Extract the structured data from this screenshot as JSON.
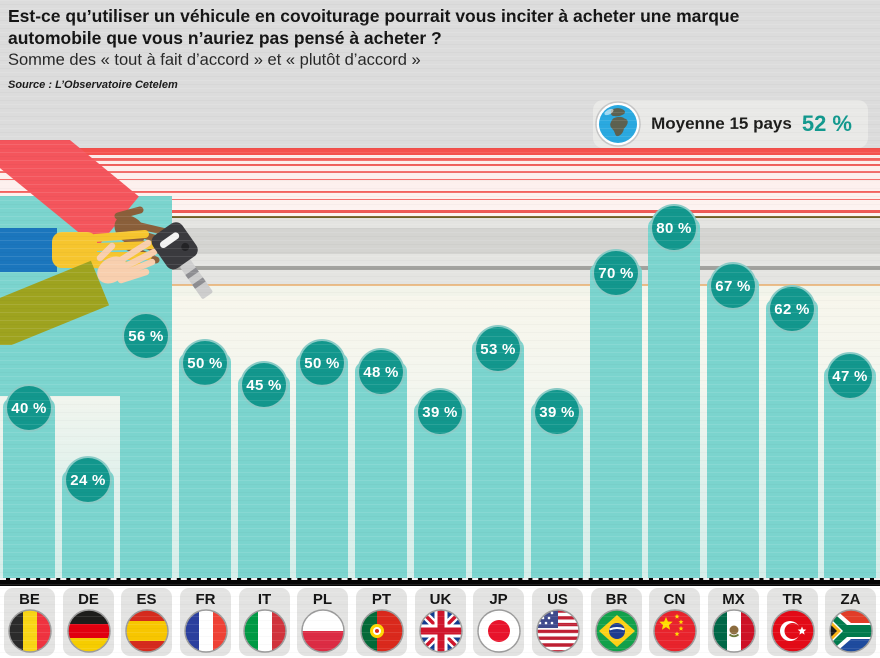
{
  "header": {
    "title": "Est-ce qu’utiliser un véhicule en covoiturage pourrait vous inciter à acheter une marque automobile que vous n’auriez pas pensé à acheter ?",
    "subtitle": "Somme des « tout à fait d’accord » et « plutôt d’accord »",
    "source": "Source : L’Observatoire Cetelem"
  },
  "average_badge": {
    "icon": "globe-icon",
    "label": "Moyenne 15 pays",
    "value": "52 %"
  },
  "chart_data": {
    "type": "bar",
    "title": "Est-ce qu’utiliser un véhicule en covoiturage pourrait vous inciter à acheter une marque automobile que vous n’auriez pas pensé à acheter ? — Somme des « tout à fait d’accord » et « plutôt d’accord »",
    "categories": [
      "BE",
      "DE",
      "ES",
      "FR",
      "IT",
      "PL",
      "PT",
      "UK",
      "JP",
      "US",
      "BR",
      "CN",
      "MX",
      "TR",
      "ZA"
    ],
    "values": [
      40,
      24,
      56,
      50,
      45,
      50,
      48,
      39,
      53,
      39,
      70,
      80,
      67,
      62,
      47
    ],
    "value_labels": [
      "40 %",
      "24 %",
      "56 %",
      "50 %",
      "45 %",
      "50 %",
      "48 %",
      "39 %",
      "53 %",
      "39 %",
      "70 %",
      "80 %",
      "67 %",
      "62 %",
      "47 %"
    ],
    "unit": "%",
    "ylim": [
      0,
      100
    ],
    "average_15_pays": 52,
    "legend": "none",
    "grid": "off"
  },
  "colors": {
    "bar_fill": "#7BD4CE",
    "bubble_fill": "#12978D",
    "accent_teal": "#12998E",
    "stripe_red": "#F4504C",
    "header_bg": "#DCDCDC"
  }
}
